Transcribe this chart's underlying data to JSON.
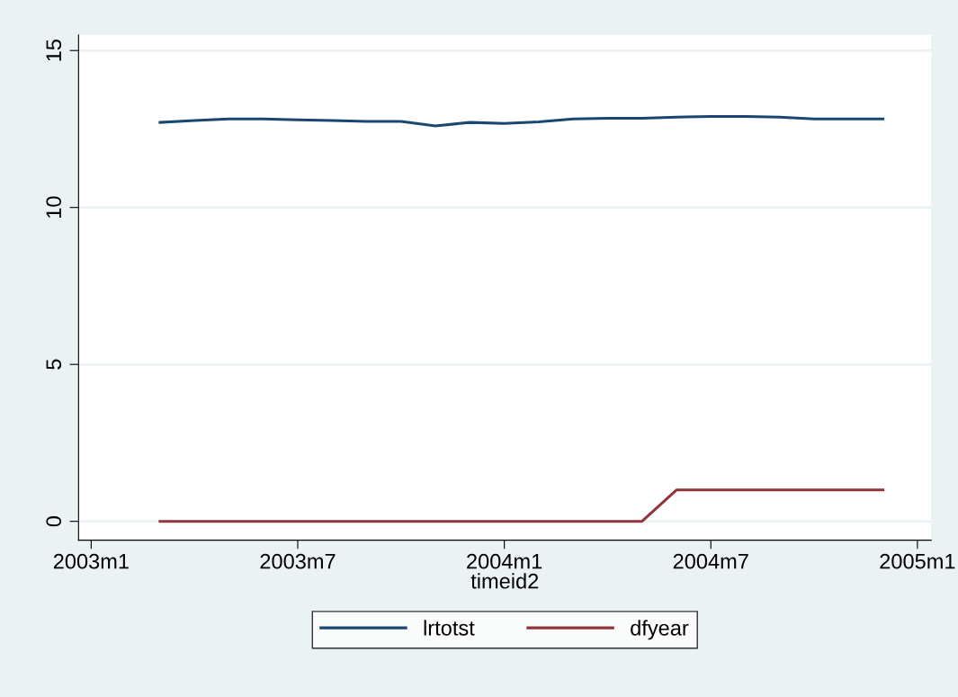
{
  "chart_data": {
    "type": "line",
    "xlabel": "timeid2",
    "x": [
      "2003-03",
      "2003-04",
      "2003-05",
      "2003-06",
      "2003-07",
      "2003-08",
      "2003-09",
      "2003-10",
      "2003-11",
      "2003-12",
      "2004-01",
      "2004-02",
      "2004-03",
      "2004-04",
      "2004-05",
      "2004-06",
      "2004-07",
      "2004-08",
      "2004-09",
      "2004-10",
      "2004-11",
      "2004-12"
    ],
    "series": [
      {
        "name": "lrtotst",
        "color": "#1a476f",
        "values": [
          12.71,
          12.77,
          12.82,
          12.82,
          12.79,
          12.77,
          12.74,
          12.74,
          12.6,
          12.71,
          12.68,
          12.73,
          12.82,
          12.84,
          12.84,
          12.88,
          12.9,
          12.9,
          12.88,
          12.82,
          12.82,
          12.82
        ]
      },
      {
        "name": "dfyear",
        "color": "#90353b",
        "values": [
          0,
          0,
          0,
          0,
          0,
          0,
          0,
          0,
          0,
          0,
          0,
          0,
          0,
          0,
          0,
          1,
          1,
          1,
          1,
          1,
          1,
          1
        ]
      }
    ],
    "xlim": [
      "2002-12-20",
      "2005-01-13"
    ],
    "xticks": [
      {
        "value": "2003-01",
        "label": "2003m1"
      },
      {
        "value": "2003-07",
        "label": "2003m7"
      },
      {
        "value": "2004-01",
        "label": "2004m1"
      },
      {
        "value": "2004-07",
        "label": "2004m7"
      },
      {
        "value": "2005-01",
        "label": "2005m1"
      }
    ],
    "ylim": [
      -0.6,
      15.5
    ],
    "yticks": [
      0,
      5,
      10,
      15
    ],
    "grid": "y",
    "legend": "bottom",
    "marker": "none",
    "line_style": "solid"
  }
}
